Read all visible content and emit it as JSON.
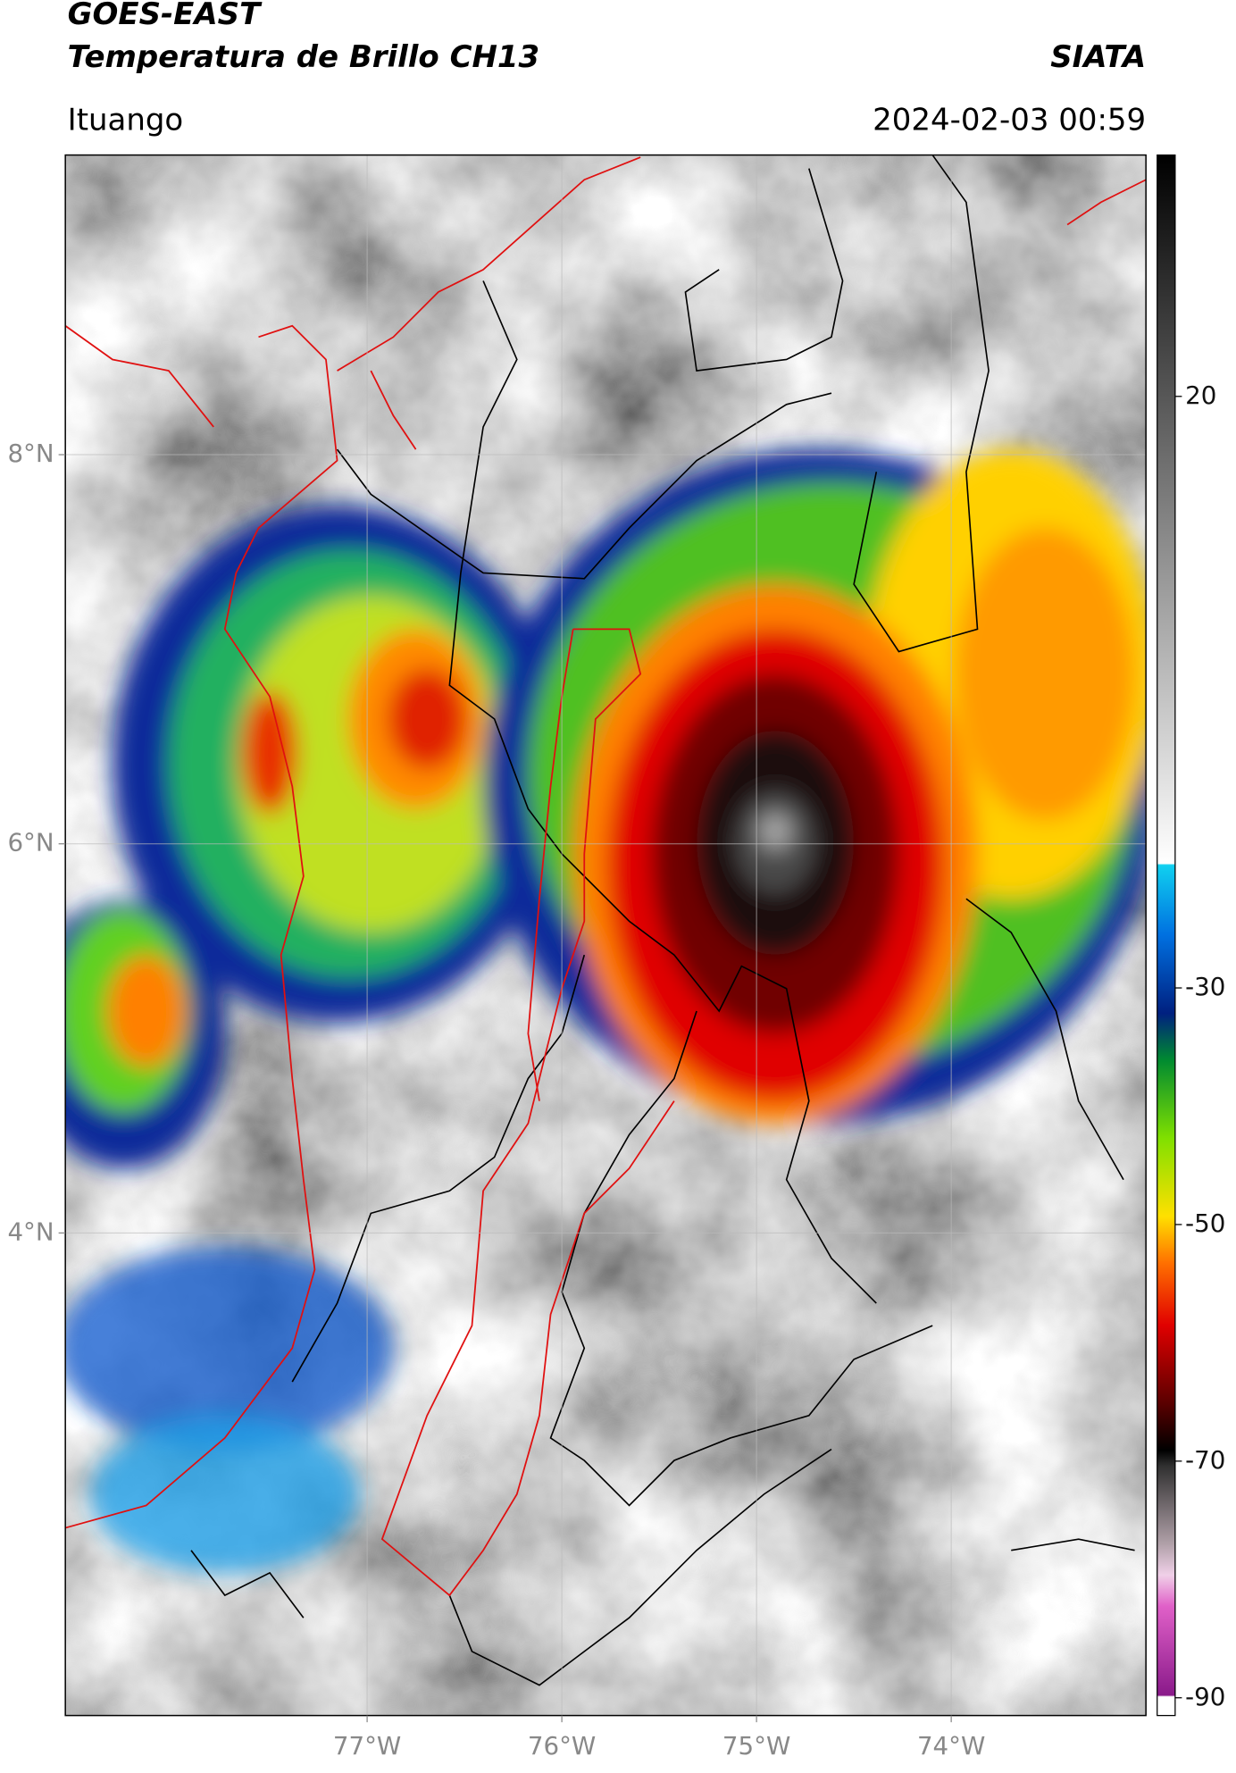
{
  "header": {
    "title": "GOES-EAST",
    "subtitle": "Temperatura de Brillo CH13",
    "source": "SIATA",
    "location": "Ituango",
    "timestamp": "2024-02-03 00:59"
  },
  "map": {
    "xlim": [
      -78.55,
      -73.0
    ],
    "ylim": [
      1.52,
      9.54
    ],
    "xticks": [
      {
        "value": -77,
        "label": "77°W"
      },
      {
        "value": -76,
        "label": "76°W"
      },
      {
        "value": -75,
        "label": "75°W"
      },
      {
        "value": -74,
        "label": "74°W"
      }
    ],
    "yticks": [
      {
        "value": 8,
        "label": "8°N"
      },
      {
        "value": 6,
        "label": "6°N"
      },
      {
        "value": 4,
        "label": "4°N"
      }
    ],
    "grid": true
  },
  "colorbar": {
    "lim": [
      -91.5,
      40.4
    ],
    "ticks": [
      20,
      -30,
      -50,
      -70,
      -90
    ]
  }
}
